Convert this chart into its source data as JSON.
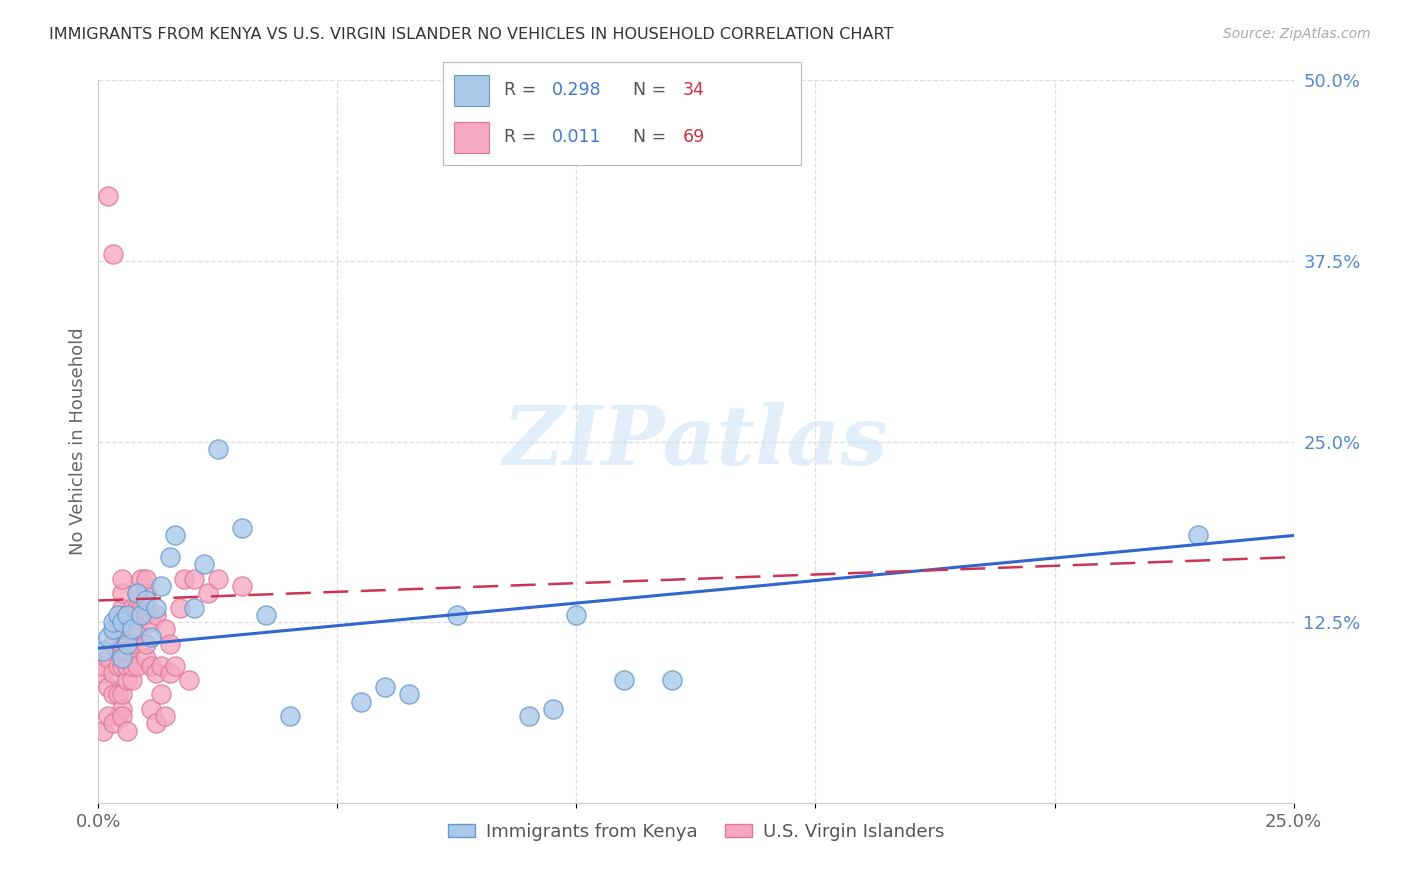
{
  "title": "IMMIGRANTS FROM KENYA VS U.S. VIRGIN ISLANDER NO VEHICLES IN HOUSEHOLD CORRELATION CHART",
  "source": "Source: ZipAtlas.com",
  "ylabel": "No Vehicles in Household",
  "xlim": [
    0.0,
    0.25
  ],
  "ylim": [
    0.0,
    0.5
  ],
  "series1_label": "Immigrants from Kenya",
  "series1_R": 0.298,
  "series1_N": 34,
  "series1_color": "#aac8e8",
  "series1_edge_color": "#6699cc",
  "series2_label": "U.S. Virgin Islanders",
  "series2_R": 0.011,
  "series2_N": 69,
  "series2_color": "#f5a8c0",
  "series2_edge_color": "#dd7799",
  "trend1_color": "#3366cc",
  "trend2_color": "#cc3355",
  "background_color": "#ffffff",
  "grid_color": "#dddddd",
  "title_color": "#333333",
  "right_tick_color": "#5588cc",
  "legend_R_color": "#4477cc",
  "legend_N_color": "#cc3344",
  "watermark_text": "ZIPatlas",
  "watermark_color": "#d0e4f5",
  "series1_x": [
    0.001,
    0.002,
    0.003,
    0.003,
    0.004,
    0.005,
    0.005,
    0.006,
    0.006,
    0.007,
    0.008,
    0.009,
    0.01,
    0.011,
    0.012,
    0.013,
    0.015,
    0.016,
    0.02,
    0.022,
    0.025,
    0.03,
    0.035,
    0.04,
    0.055,
    0.06,
    0.065,
    0.075,
    0.09,
    0.095,
    0.1,
    0.11,
    0.12,
    0.23
  ],
  "series1_y": [
    0.105,
    0.115,
    0.12,
    0.125,
    0.13,
    0.1,
    0.125,
    0.11,
    0.13,
    0.12,
    0.145,
    0.13,
    0.14,
    0.115,
    0.135,
    0.15,
    0.17,
    0.185,
    0.135,
    0.165,
    0.245,
    0.19,
    0.13,
    0.06,
    0.07,
    0.08,
    0.075,
    0.13,
    0.06,
    0.065,
    0.13,
    0.085,
    0.085,
    0.185
  ],
  "series2_x": [
    0.001,
    0.001,
    0.002,
    0.002,
    0.002,
    0.003,
    0.003,
    0.003,
    0.003,
    0.004,
    0.004,
    0.004,
    0.004,
    0.004,
    0.004,
    0.005,
    0.005,
    0.005,
    0.005,
    0.005,
    0.005,
    0.005,
    0.005,
    0.006,
    0.006,
    0.006,
    0.006,
    0.007,
    0.007,
    0.007,
    0.007,
    0.007,
    0.008,
    0.008,
    0.008,
    0.008,
    0.009,
    0.009,
    0.009,
    0.01,
    0.01,
    0.01,
    0.01,
    0.01,
    0.011,
    0.011,
    0.011,
    0.012,
    0.012,
    0.012,
    0.013,
    0.013,
    0.014,
    0.014,
    0.015,
    0.015,
    0.016,
    0.017,
    0.018,
    0.019,
    0.02,
    0.023,
    0.025,
    0.03,
    0.001,
    0.002,
    0.003,
    0.005,
    0.006
  ],
  "series2_y": [
    0.09,
    0.095,
    0.08,
    0.1,
    0.42,
    0.075,
    0.09,
    0.11,
    0.38,
    0.06,
    0.075,
    0.095,
    0.105,
    0.12,
    0.125,
    0.065,
    0.075,
    0.095,
    0.11,
    0.12,
    0.135,
    0.145,
    0.155,
    0.085,
    0.095,
    0.105,
    0.13,
    0.085,
    0.095,
    0.11,
    0.13,
    0.135,
    0.095,
    0.12,
    0.135,
    0.145,
    0.13,
    0.135,
    0.155,
    0.1,
    0.11,
    0.13,
    0.145,
    0.155,
    0.065,
    0.095,
    0.125,
    0.055,
    0.09,
    0.13,
    0.075,
    0.095,
    0.06,
    0.12,
    0.09,
    0.11,
    0.095,
    0.135,
    0.155,
    0.085,
    0.155,
    0.145,
    0.155,
    0.15,
    0.05,
    0.06,
    0.055,
    0.06,
    0.05
  ],
  "trend1_x0": 0.0,
  "trend1_y0": 0.107,
  "trend1_x1": 0.25,
  "trend1_y1": 0.185,
  "trend2_x0": 0.0,
  "trend2_y0": 0.14,
  "trend2_x1": 0.25,
  "trend2_y1": 0.17
}
